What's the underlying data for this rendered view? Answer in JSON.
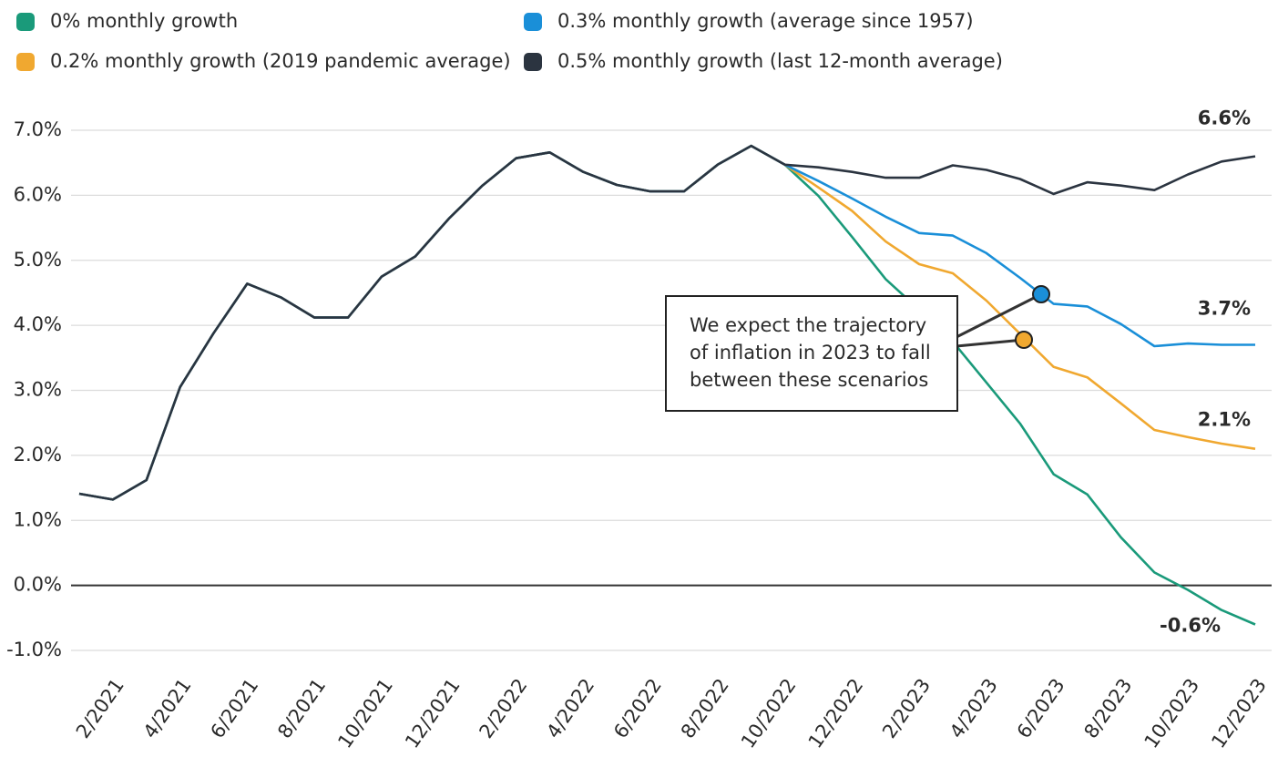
{
  "chart_data": {
    "type": "line",
    "categories": [
      null,
      "2/2021",
      null,
      "4/2021",
      null,
      "6/2021",
      null,
      "8/2021",
      null,
      "10/2021",
      null,
      "12/2021",
      null,
      "2/2022",
      null,
      "4/2022",
      null,
      "6/2022",
      null,
      "8/2022",
      null,
      "10/2022",
      null,
      "12/2022",
      null,
      "2/2023",
      null,
      "4/2023",
      null,
      "6/2023",
      null,
      "8/2023",
      null,
      "10/2023",
      null,
      "12/2023"
    ],
    "series": [
      {
        "name": "0% monthly growth",
        "color": "#1a9a7a",
        "values": [
          1.41,
          1.32,
          1.62,
          3.05,
          3.88,
          4.64,
          4.43,
          4.12,
          4.12,
          4.75,
          5.06,
          5.64,
          6.15,
          6.57,
          6.66,
          6.36,
          6.16,
          6.06,
          6.06,
          6.47,
          6.76,
          6.47,
          5.99,
          5.36,
          4.71,
          4.24,
          3.75,
          3.12,
          2.49,
          1.71,
          1.4,
          0.74,
          0.2,
          -0.07,
          -0.38,
          -0.6
        ],
        "value_labels": [
          null,
          null,
          null,
          null,
          null,
          null,
          null,
          null,
          null,
          null,
          null,
          null,
          null,
          null,
          null,
          null,
          null,
          null,
          null,
          null,
          null,
          null,
          null,
          null,
          null,
          null,
          null,
          null,
          null,
          null,
          null,
          null,
          null,
          null,
          null,
          "-0.6%"
        ]
      },
      {
        "name": "0.2% monthly growth (2019 pandemic average)",
        "color": "#f0a830",
        "values": [
          1.41,
          1.32,
          1.62,
          3.05,
          3.88,
          4.64,
          4.43,
          4.12,
          4.12,
          4.75,
          5.06,
          5.64,
          6.15,
          6.57,
          6.66,
          6.36,
          6.16,
          6.06,
          6.06,
          6.47,
          6.76,
          6.47,
          6.12,
          5.76,
          5.29,
          4.94,
          4.8,
          4.38,
          3.87,
          3.36,
          3.2,
          2.8,
          2.39,
          2.28,
          2.18,
          2.1
        ],
        "value_labels": [
          null,
          null,
          null,
          null,
          null,
          null,
          null,
          null,
          null,
          null,
          null,
          null,
          null,
          null,
          null,
          null,
          null,
          null,
          null,
          null,
          null,
          null,
          null,
          null,
          null,
          null,
          null,
          null,
          null,
          null,
          null,
          null,
          null,
          null,
          null,
          "2.1%"
        ]
      },
      {
        "name": "0.3% monthly growth (average since 1957)",
        "color": "#1a8fd8",
        "values": [
          1.41,
          1.32,
          1.62,
          3.05,
          3.88,
          4.64,
          4.43,
          4.12,
          4.12,
          4.75,
          5.06,
          5.64,
          6.15,
          6.57,
          6.66,
          6.36,
          6.16,
          6.06,
          6.06,
          6.47,
          6.76,
          6.47,
          6.22,
          5.95,
          5.67,
          5.42,
          5.38,
          5.11,
          4.73,
          4.33,
          4.29,
          4.02,
          3.68,
          3.72,
          3.7,
          3.7
        ],
        "value_labels": [
          null,
          null,
          null,
          null,
          null,
          null,
          null,
          null,
          null,
          null,
          null,
          null,
          null,
          null,
          null,
          null,
          null,
          null,
          null,
          null,
          null,
          null,
          null,
          null,
          null,
          null,
          null,
          null,
          null,
          null,
          null,
          null,
          null,
          null,
          null,
          "3.7%"
        ]
      },
      {
        "name": "0.5% monthly growth (last 12-month average)",
        "color": "#2b3440",
        "values": [
          1.41,
          1.32,
          1.62,
          3.05,
          3.88,
          4.64,
          4.43,
          4.12,
          4.12,
          4.75,
          5.06,
          5.64,
          6.15,
          6.57,
          6.66,
          6.36,
          6.16,
          6.06,
          6.06,
          6.47,
          6.76,
          6.47,
          6.43,
          6.36,
          6.27,
          6.27,
          6.46,
          6.39,
          6.25,
          6.02,
          6.2,
          6.15,
          6.08,
          6.32,
          6.52,
          6.6
        ],
        "value_labels": [
          null,
          null,
          null,
          null,
          null,
          null,
          null,
          null,
          null,
          null,
          null,
          null,
          null,
          null,
          null,
          null,
          null,
          null,
          null,
          null,
          null,
          null,
          null,
          null,
          null,
          null,
          null,
          null,
          null,
          null,
          null,
          null,
          null,
          null,
          null,
          "6.6%"
        ]
      }
    ],
    "ylim": [
      -1.0,
      7.0
    ],
    "yticks": [
      {
        "value": -1,
        "label": "-1.0%"
      },
      {
        "value": 0,
        "label": "0.0%"
      },
      {
        "value": 1,
        "label": "1.0%"
      },
      {
        "value": 2,
        "label": "2.0%"
      },
      {
        "value": 3,
        "label": "3.0%"
      },
      {
        "value": 4,
        "label": "4.0%"
      },
      {
        "value": 5,
        "label": "5.0%"
      },
      {
        "value": 6,
        "label": "6.0%"
      },
      {
        "value": 7,
        "label": "7.0%"
      }
    ],
    "grid": true,
    "annotation": [
      "We expect the trajectory",
      "of inflation in 2023 to fall",
      "between these scenarios"
    ]
  }
}
